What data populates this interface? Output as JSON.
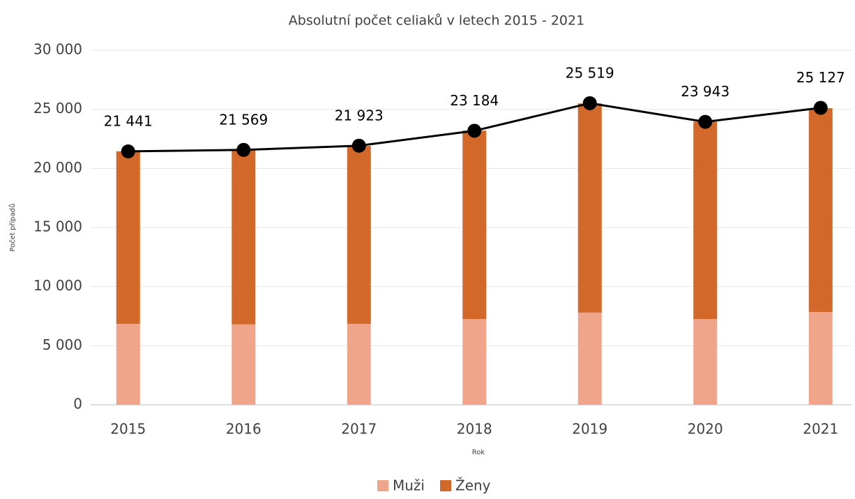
{
  "chart_data": {
    "type": "bar",
    "stacked": true,
    "title": "Absolutní počet celiaků v letech 2015 - 2021",
    "y_label": "Počet případů",
    "x_label": "Rok",
    "categories": [
      "2015",
      "2016",
      "2017",
      "2018",
      "2019",
      "2020",
      "2021"
    ],
    "series": [
      {
        "name": "Muži",
        "color": "#f0a58a",
        "values": [
          6850,
          6800,
          6850,
          7250,
          7800,
          7250,
          7850
        ]
      },
      {
        "name": "Ženy",
        "color": "#d2692a",
        "values": [
          14600,
          14750,
          15050,
          15950,
          17700,
          16700,
          17250
        ]
      },
      {
        "type": "line",
        "color": "#000000",
        "values": [
          21441,
          21569,
          21923,
          23184,
          25519,
          23943,
          25127
        ],
        "value_labels": [
          "21 441",
          "21 569",
          "21 923",
          "23 184",
          "25 519",
          "23 943",
          "25 127"
        ]
      }
    ],
    "ylim": [
      0,
      30000
    ],
    "yticks": [
      0,
      {
        "value": 5000,
        "label": "5 000"
      },
      {
        "value": 10000,
        "label": "10 000"
      },
      {
        "value": 15000,
        "label": "15 000"
      },
      {
        "value": 20000,
        "label": "20 000"
      },
      {
        "value": 25000,
        "label": "25 000"
      },
      {
        "value": 30000,
        "label": "30 000"
      }
    ],
    "grid": true,
    "legend": "bottom"
  }
}
